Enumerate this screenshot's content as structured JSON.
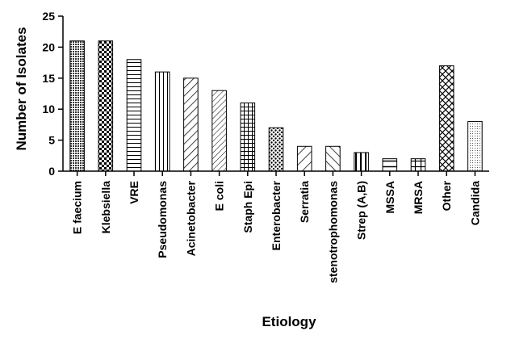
{
  "chart_data": {
    "type": "bar",
    "title": "",
    "xlabel": "Etiology",
    "ylabel": "Number of Isolates",
    "ylim": [
      0,
      25
    ],
    "yticks": [
      0,
      5,
      10,
      15,
      20,
      25
    ],
    "grid": false,
    "categories": [
      "E faecium",
      "Klebsiella",
      "VRE",
      "Pseudomonas",
      "Acinetobacter",
      "E coli",
      "Staph Epi",
      "Enterobacter",
      "Serratia",
      "stenotrophomonas",
      "Strep (A,B)",
      "MSSA",
      "MRSA",
      "Other",
      "Candida"
    ],
    "values": [
      21,
      21,
      18,
      16,
      15,
      13,
      11,
      7,
      4,
      4,
      3,
      2,
      2,
      17,
      8
    ],
    "bar_patterns": [
      "fine-dots",
      "checker",
      "horizontal-lines",
      "vertical-lines",
      "diagonal-down",
      "diagonal-down-fine",
      "grid",
      "dots",
      "diagonal-down-wide",
      "diagonal-up",
      "vertical-lines-wide",
      "horizontal-lines-wide",
      "grid-wide",
      "crosshatch",
      "light-dots"
    ]
  }
}
